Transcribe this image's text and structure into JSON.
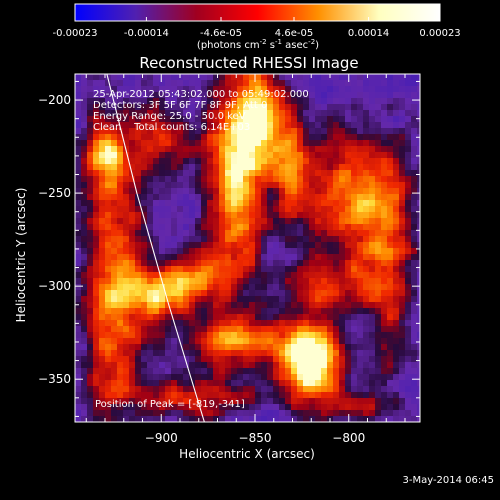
{
  "chart_data": {
    "type": "heatmap",
    "title": "Reconstructed RHESSI Image",
    "xlabel": "Heliocentric X (arcsec)",
    "ylabel": "Heliocentric Y (arcsec)",
    "xlim": [
      -946,
      -762
    ],
    "ylim": [
      -373,
      -186
    ],
    "x_ticks": [
      -900,
      -850,
      -800
    ],
    "y_ticks": [
      -200,
      -250,
      -300,
      -350
    ],
    "colorbar": {
      "range": [
        -0.00023,
        0.00023
      ],
      "tick_values": [
        -0.00023,
        -0.00014,
        -4.6e-05,
        4.6e-05,
        0.00014,
        0.00023
      ],
      "tick_labels": [
        "-0.00023",
        "-0.00014",
        "-4.6e-05",
        "4.6e-05",
        "0.00014",
        "0.00023"
      ],
      "units_label": "(photons cm",
      "units_exp1": "-2",
      "units_mid1": " s",
      "units_exp2": "-1",
      "units_mid2": " asec",
      "units_exp3": "-2",
      "units_end": ")",
      "colormap": "rhessi-hot",
      "colors": [
        "#0000ff",
        "#5020b0",
        "#a00020",
        "#ff0000",
        "#ff9000",
        "#ffffc0",
        "#ffffff"
      ]
    },
    "annotations": {
      "line1": "25-Apr-2012 05:43:02.000 to 05:49:02.000",
      "line2": "Detectors: 3F 5F 6F 7F 8F 9F, Att 0",
      "line3": "Energy Range: 25.0 - 50.0 keV",
      "line4": "Clean    Total counts: 6.14E+03",
      "peak": "Position of Peak = [-819,-341]"
    },
    "peak_position": [
      -819,
      -341
    ],
    "limb": [
      [
        -929,
        -186
      ],
      [
        -913,
        -250
      ],
      [
        -896,
        -310
      ],
      [
        -877,
        -373
      ]
    ],
    "emission_blobs": [
      {
        "x": -860,
        "y": -240,
        "sx": 12,
        "sy": 40,
        "a": 1.0
      },
      {
        "x": -845,
        "y": -210,
        "sx": 10,
        "sy": 18,
        "a": 0.8
      },
      {
        "x": -820,
        "y": -340,
        "sx": 12,
        "sy": 14,
        "a": 1.4
      },
      {
        "x": -800,
        "y": -250,
        "sx": 18,
        "sy": 24,
        "a": 0.8
      },
      {
        "x": -860,
        "y": -330,
        "sx": 20,
        "sy": 10,
        "a": 0.7
      },
      {
        "x": -925,
        "y": -300,
        "sx": 12,
        "sy": 60,
        "a": 0.8
      },
      {
        "x": -900,
        "y": -305,
        "sx": 12,
        "sy": 10,
        "a": 0.8
      },
      {
        "x": -880,
        "y": -295,
        "sx": 14,
        "sy": 10,
        "a": 0.6
      },
      {
        "x": -810,
        "y": -300,
        "sx": 16,
        "sy": 10,
        "a": 0.6
      },
      {
        "x": -778,
        "y": -290,
        "sx": 10,
        "sy": 40,
        "a": 0.6
      },
      {
        "x": -900,
        "y": -220,
        "sx": 10,
        "sy": 14,
        "a": 0.6
      },
      {
        "x": -830,
        "y": -240,
        "sx": 6,
        "sy": 20,
        "a": 0.6
      },
      {
        "x": -880,
        "y": -360,
        "sx": 22,
        "sy": 8,
        "a": 0.6
      },
      {
        "x": -800,
        "y": -365,
        "sx": 14,
        "sy": 6,
        "a": 0.5
      },
      {
        "x": -930,
        "y": -230,
        "sx": 10,
        "sy": 12,
        "a": 0.6
      }
    ]
  },
  "footer": {
    "timestamp": "3-May-2014 06:45"
  }
}
